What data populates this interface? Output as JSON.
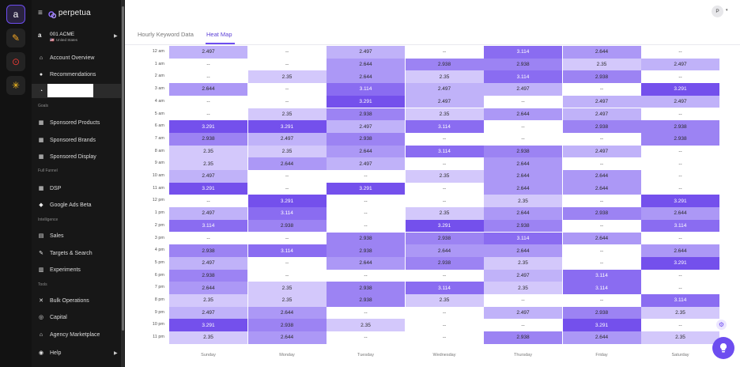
{
  "rail": {
    "buttons": [
      {
        "name": "amazon-channel-icon",
        "glyph": "a",
        "bg": "#2a2340",
        "color": "#ffffff",
        "border": "#6d4df0"
      },
      {
        "name": "pencil-channel-icon",
        "glyph": "✎",
        "bg": "#232323",
        "color": "#f5a623",
        "border": ""
      },
      {
        "name": "target-channel-icon",
        "glyph": "⊙",
        "bg": "#232323",
        "color": "#e53935",
        "border": ""
      },
      {
        "name": "walmart-channel-icon",
        "glyph": "✳",
        "bg": "#232323",
        "color": "#ffc220",
        "border": ""
      }
    ]
  },
  "sidebar": {
    "logo_text": "perpetua",
    "account_name": "001 ACME",
    "account_country": "United States",
    "account_flag": "🇺🇸",
    "sections": {
      "goals": "Goals",
      "full_funnel": "Full Funnel",
      "intelligence": "Intelligence",
      "tools": "Tools"
    },
    "items": [
      {
        "name": "account-overview",
        "label": "Account Overview",
        "icon": "home-icon",
        "glyph": "⌂"
      },
      {
        "name": "recommendations",
        "label": "Recommendations",
        "icon": "bulb-icon",
        "glyph": "●"
      },
      {
        "name": "redacted",
        "label": "",
        "icon": "chart-icon",
        "glyph": "◔"
      },
      {
        "name": "sponsored-products",
        "label": "Sponsored Products",
        "icon": "grid-icon",
        "glyph": "▦"
      },
      {
        "name": "sponsored-brands",
        "label": "Sponsored Brands",
        "icon": "grid-icon",
        "glyph": "▦"
      },
      {
        "name": "sponsored-display",
        "label": "Sponsored Display",
        "icon": "grid-icon",
        "glyph": "▦"
      },
      {
        "name": "dsp",
        "label": "DSP",
        "icon": "grid-icon",
        "glyph": "▦"
      },
      {
        "name": "google-ads-beta",
        "label": "Google Ads Beta",
        "icon": "google-icon",
        "glyph": "◆"
      },
      {
        "name": "sales",
        "label": "Sales",
        "icon": "sales-chart-icon",
        "glyph": "▤"
      },
      {
        "name": "targets-search",
        "label": "Targets & Search",
        "icon": "pen-icon",
        "glyph": "✎"
      },
      {
        "name": "experiments",
        "label": "Experiments",
        "icon": "flask-icon",
        "glyph": "▥"
      },
      {
        "name": "bulk-operations",
        "label": "Bulk Operations",
        "icon": "tools-icon",
        "glyph": "✕"
      },
      {
        "name": "capital",
        "label": "Capital",
        "icon": "coin-icon",
        "glyph": "◎"
      },
      {
        "name": "agency-marketplace",
        "label": "Agency Marketplace",
        "icon": "store-icon",
        "glyph": "⌂"
      },
      {
        "name": "help",
        "label": "Help",
        "icon": "help-icon",
        "glyph": "◉"
      }
    ]
  },
  "tabs": [
    {
      "label": "Hourly Keyword Data",
      "active": false
    },
    {
      "label": "Heat Map",
      "active": true
    }
  ],
  "user": {
    "initial": "P",
    "caret": "▾"
  },
  "colors": {
    "accent": "#6d4df0",
    "empty": "--"
  },
  "chart_data": {
    "type": "heatmap",
    "x": [
      "Sunday",
      "Monday",
      "Tuesday",
      "Wednesday",
      "Thursday",
      "Friday",
      "Saturday"
    ],
    "y": [
      "12 am",
      "1 am",
      "2 am",
      "3 am",
      "4 am",
      "5 am",
      "6 am",
      "7 am",
      "8 am",
      "9 am",
      "10 am",
      "11 am",
      "12 pm",
      "1 pm",
      "2 pm",
      "3 pm",
      "4 pm",
      "5 pm",
      "6 pm",
      "7 pm",
      "8 pm",
      "9 pm",
      "10 pm",
      "11 pm"
    ],
    "values": [
      [
        "2.497",
        "--",
        "2.497",
        "--",
        "3.114",
        "2.644",
        "--"
      ],
      [
        "--",
        "--",
        "2.644",
        "2.938",
        "2.938",
        "2.35",
        "2.497"
      ],
      [
        "--",
        "2.35",
        "2.644",
        "2.35",
        "3.114",
        "2.938",
        "--"
      ],
      [
        "2.644",
        "--",
        "3.114",
        "2.497",
        "2.497",
        "--",
        "3.291"
      ],
      [
        "--",
        "--",
        "3.291",
        "2.497",
        "--",
        "2.497",
        "2.497"
      ],
      [
        "--",
        "2.35",
        "2.938",
        "2.35",
        "2.644",
        "2.497",
        "--"
      ],
      [
        "3.291",
        "3.291",
        "2.497",
        "3.114",
        "--",
        "2.938",
        "2.938"
      ],
      [
        "2.938",
        "2.497",
        "2.938",
        "--",
        "--",
        "--",
        "2.938"
      ],
      [
        "2.35",
        "2.35",
        "2.644",
        "3.114",
        "2.938",
        "2.497",
        "--"
      ],
      [
        "2.35",
        "2.644",
        "2.497",
        "--",
        "2.644",
        "--",
        "--"
      ],
      [
        "2.497",
        "--",
        "--",
        "2.35",
        "2.644",
        "2.644",
        "--"
      ],
      [
        "3.291",
        "--",
        "3.291",
        "--",
        "2.644",
        "2.644",
        "--"
      ],
      [
        "--",
        "3.291",
        "--",
        "--",
        "2.35",
        "--",
        "3.291"
      ],
      [
        "2.497",
        "3.114",
        "--",
        "2.35",
        "2.644",
        "2.938",
        "2.644"
      ],
      [
        "3.114",
        "2.938",
        "--",
        "3.291",
        "2.938",
        "--",
        "3.114"
      ],
      [
        "--",
        "--",
        "2.938",
        "2.938",
        "3.114",
        "2.644",
        "--"
      ],
      [
        "2.938",
        "3.114",
        "2.938",
        "2.644",
        "2.644",
        "--",
        "2.644"
      ],
      [
        "2.497",
        "--",
        "2.644",
        "2.938",
        "2.35",
        "--",
        "3.291"
      ],
      [
        "2.938",
        "--",
        "--",
        "--",
        "2.497",
        "3.114",
        "--"
      ],
      [
        "2.644",
        "2.35",
        "2.938",
        "3.114",
        "2.35",
        "3.114",
        "--"
      ],
      [
        "2.35",
        "2.35",
        "2.938",
        "2.35",
        "--",
        "--",
        "3.114"
      ],
      [
        "2.497",
        "2.644",
        "--",
        "--",
        "2.497",
        "2.938",
        "2.35"
      ],
      [
        "3.291",
        "2.938",
        "2.35",
        "--",
        "--",
        "3.291",
        "--"
      ],
      [
        "2.35",
        "2.644",
        "--",
        "--",
        "2.938",
        "2.644",
        "2.35"
      ]
    ],
    "value_levels": [
      "2.35",
      "2.497",
      "2.644",
      "2.938",
      "3.114",
      "3.291"
    ],
    "level_colors": [
      "#d3c8fb",
      "#c0b2f9",
      "#ac98f6",
      "#9c83f3",
      "#8a6cf1",
      "#7450ec"
    ],
    "empty_color": "#ffffff"
  }
}
